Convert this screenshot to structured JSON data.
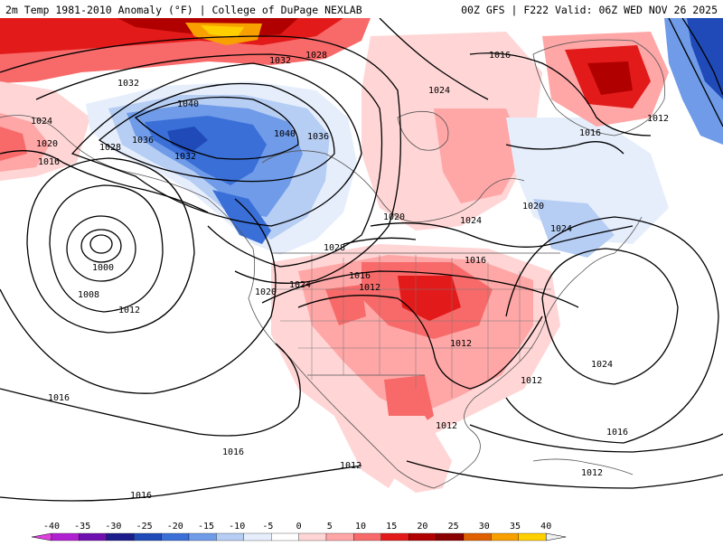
{
  "header": {
    "title_left": "2m Temp 1981-2010 Anomaly (°F) | College of DuPage NEXLAB",
    "title_right": "00Z GFS | F222 Valid: 06Z WED NOV 26 2025"
  },
  "colorbar": {
    "ticks": [
      "-40",
      "-35",
      "-30",
      "-25",
      "-20",
      "-15",
      "-10",
      "-5",
      "0",
      "5",
      "10",
      "15",
      "20",
      "25",
      "30",
      "35",
      "40"
    ],
    "colors": [
      "#e040e0",
      "#b020d0",
      "#7010b0",
      "#1c1c8c",
      "#1f4ab8",
      "#3a6fd8",
      "#6f9be8",
      "#b6cdf4",
      "#e6eefc",
      "#ffffff",
      "#ffd5d5",
      "#ffa6a6",
      "#f86a6a",
      "#e31a1a",
      "#b00000",
      "#8a0000",
      "#e06000",
      "#f8a000",
      "#ffd000",
      "#f0f0f0"
    ]
  },
  "isobars": {
    "labels": [
      {
        "text": "1032",
        "id": "iso-1032-a"
      },
      {
        "text": "1028",
        "id": "iso-1028-a"
      },
      {
        "text": "1032",
        "id": "iso-1032-b"
      },
      {
        "text": "1040",
        "id": "iso-1040-a"
      },
      {
        "text": "1024",
        "id": "iso-1024-a"
      },
      {
        "text": "1036",
        "id": "iso-1036-a"
      },
      {
        "text": "1020",
        "id": "iso-1020-a"
      },
      {
        "text": "1028",
        "id": "iso-1028-b"
      },
      {
        "text": "1016",
        "id": "iso-1016-a"
      },
      {
        "text": "1032",
        "id": "iso-1032-c"
      },
      {
        "text": "1040",
        "id": "iso-1040-b"
      },
      {
        "text": "1036",
        "id": "iso-1036-b"
      },
      {
        "text": "1016",
        "id": "iso-1016-b"
      },
      {
        "text": "1024",
        "id": "iso-1024-b"
      },
      {
        "text": "1012",
        "id": "iso-1012-a"
      },
      {
        "text": "1016",
        "id": "iso-1016-c"
      },
      {
        "text": "1020",
        "id": "iso-1020-b"
      },
      {
        "text": "1024",
        "id": "iso-1024-c"
      },
      {
        "text": "1020",
        "id": "iso-1020-c"
      },
      {
        "text": "1024",
        "id": "iso-1024-d"
      },
      {
        "text": "1000",
        "id": "iso-1000"
      },
      {
        "text": "1008",
        "id": "iso-1008"
      },
      {
        "text": "1012",
        "id": "iso-1012-b"
      },
      {
        "text": "1028",
        "id": "iso-1028-c"
      },
      {
        "text": "1016",
        "id": "iso-1016-d"
      },
      {
        "text": "1016",
        "id": "iso-1016-e"
      },
      {
        "text": "1020",
        "id": "iso-1020-d"
      },
      {
        "text": "1024",
        "id": "iso-1024-e"
      },
      {
        "text": "1012",
        "id": "iso-1012-c"
      },
      {
        "text": "1012",
        "id": "iso-1012-d"
      },
      {
        "text": "1024",
        "id": "iso-1024-f"
      },
      {
        "text": "1016",
        "id": "iso-1016-f"
      },
      {
        "text": "1012",
        "id": "iso-1012-e"
      },
      {
        "text": "1016",
        "id": "iso-1016-g"
      },
      {
        "text": "1016",
        "id": "iso-1016-h"
      },
      {
        "text": "1012",
        "id": "iso-1012-f"
      },
      {
        "text": "1012",
        "id": "iso-1012-g"
      },
      {
        "text": "1016",
        "id": "iso-1016-i"
      },
      {
        "text": "1012",
        "id": "iso-1012-h"
      }
    ]
  }
}
